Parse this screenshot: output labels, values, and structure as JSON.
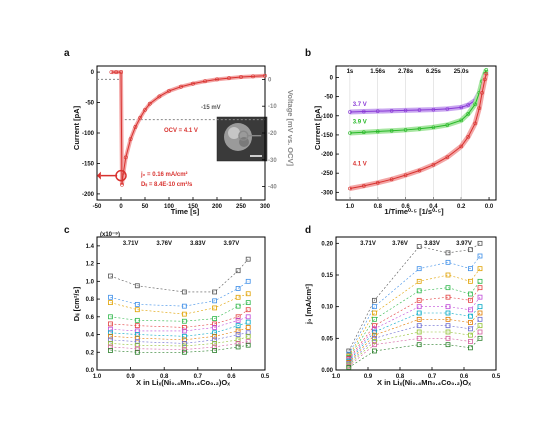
{
  "panels": {
    "a": {
      "label": "a"
    },
    "b": {
      "label": "b"
    },
    "c": {
      "label": "c"
    },
    "d": {
      "label": "d"
    }
  },
  "colors": {
    "red": "#d8322f",
    "red_light": "#f3a6a6",
    "green": "#28b928",
    "green_light": "#a7e6a1",
    "purple": "#8a3ad6",
    "purple_light": "#c9a6f0",
    "gray": "#888888"
  },
  "chart_data": [
    {
      "panel": "a",
      "type": "line",
      "xlabel": "Time [s]",
      "ylabel": "Current [pA]",
      "ylabel_right": "Voltage [mV vs. OCV]",
      "xlim": [
        -50,
        300
      ],
      "ylim": [
        -210,
        10
      ],
      "ylim_right": [
        -45,
        5
      ],
      "xticks": [
        "-50",
        "0",
        "50",
        "100",
        "150",
        "200",
        "250",
        "300"
      ],
      "yticks": [
        "0",
        "-50",
        "-100",
        "-150",
        "-200"
      ],
      "yticks_right": [
        "0",
        "-10",
        "-20",
        "-30",
        "-40"
      ],
      "series": [
        {
          "x": [
            -20,
            -10,
            0,
            2,
            5,
            10,
            20,
            30,
            40,
            50,
            60,
            80,
            100,
            125,
            150,
            175,
            200,
            225,
            250,
            275,
            300
          ],
          "values": [
            0,
            0,
            0,
            -185,
            -165,
            -140,
            -110,
            -90,
            -75,
            -62,
            -52,
            -40,
            -31,
            -24,
            -19,
            -15,
            -12,
            -10,
            -8,
            -7,
            -6
          ]
        }
      ],
      "voltage_step": {
        "x": [
          -50,
          0,
          0,
          300
        ],
        "values": [
          0,
          0,
          -15,
          -15
        ]
      },
      "annotations": {
        "step": "-15 mV",
        "ocv": "OCV = 4.1 V",
        "j0": "j₀ = 0.16 mA/cm²",
        "dli": "Dₗᵢ = 8.4E-10 cm²/s"
      }
    },
    {
      "panel": "b",
      "type": "scatter",
      "xlabel": "1/Time⁰·⁵ [1/s⁰·⁵]",
      "ylabel": "Current [pA]",
      "xlim": [
        1.1,
        -0.05
      ],
      "ylim": [
        -320,
        30
      ],
      "xticks": [
        "1.0",
        "0.8",
        "0.6",
        "0.4",
        "0.2",
        "0.0"
      ],
      "yticks": [
        "0",
        "-50",
        "-100",
        "-150",
        "-200",
        "-250",
        "-300"
      ],
      "top_labels": [
        "1s",
        "1.56s",
        "2.78s",
        "6.25s",
        "25.0s"
      ],
      "series": [
        {
          "name": "3.7 V",
          "x": [
            1.0,
            0.9,
            0.8,
            0.7,
            0.6,
            0.5,
            0.4,
            0.3,
            0.2,
            0.15,
            0.1,
            0.07,
            0.05,
            0.03,
            0.02
          ],
          "values": [
            -90,
            -89,
            -88,
            -87,
            -86,
            -85,
            -84,
            -82,
            -78,
            -72,
            -60,
            -40,
            -15,
            5,
            15
          ]
        },
        {
          "name": "3.9 V",
          "x": [
            1.0,
            0.9,
            0.8,
            0.7,
            0.6,
            0.5,
            0.4,
            0.3,
            0.2,
            0.15,
            0.1,
            0.07,
            0.05,
            0.03,
            0.02
          ],
          "values": [
            -145,
            -143,
            -141,
            -139,
            -137,
            -134,
            -130,
            -124,
            -112,
            -95,
            -70,
            -40,
            -10,
            10,
            20
          ]
        },
        {
          "name": "4.1 V",
          "x": [
            1.0,
            0.9,
            0.8,
            0.7,
            0.6,
            0.5,
            0.4,
            0.3,
            0.2,
            0.15,
            0.1,
            0.07,
            0.05,
            0.03,
            0.02
          ],
          "values": [
            -290,
            -283,
            -275,
            -266,
            -255,
            -243,
            -228,
            -208,
            -180,
            -155,
            -120,
            -80,
            -40,
            -5,
            10
          ]
        }
      ]
    },
    {
      "panel": "c",
      "type": "scatter",
      "xlabel": "X in Liₓ(Ni₀.₄Mn₀.₄Co₀.₂)Oₓ",
      "ylabel": "Dₗᵢ [cm²/s]",
      "exponent": "(x10⁻⁹)",
      "xlim": [
        1.0,
        0.5
      ],
      "ylim": [
        0,
        1.5
      ],
      "xticks": [
        "1.0",
        "0.9",
        "0.8",
        "0.7",
        "0.6",
        "0.5"
      ],
      "yticks": [
        "0.0",
        "0.2",
        "0.4",
        "0.6",
        "0.8",
        "1.0",
        "1.2",
        "1.4"
      ],
      "top_labels": [
        "3.71V",
        "3.76V",
        "3.83V",
        "3.97V"
      ],
      "x": [
        0.96,
        0.88,
        0.74,
        0.65,
        0.58,
        0.55
      ],
      "series": [
        {
          "values": [
            1.06,
            0.95,
            0.88,
            0.88,
            1.12,
            1.25
          ],
          "color": "#555555"
        },
        {
          "values": [
            0.82,
            0.74,
            0.72,
            0.78,
            0.92,
            1.0
          ],
          "color": "#3d8ee8"
        },
        {
          "values": [
            0.76,
            0.68,
            0.63,
            0.7,
            0.82,
            0.86
          ],
          "color": "#e0a100"
        },
        {
          "values": [
            0.6,
            0.56,
            0.55,
            0.58,
            0.72,
            0.76
          ],
          "color": "#2fb84b"
        },
        {
          "values": [
            0.52,
            0.5,
            0.48,
            0.52,
            0.6,
            0.68
          ],
          "color": "#e23e3e"
        },
        {
          "values": [
            0.46,
            0.44,
            0.44,
            0.48,
            0.56,
            0.6
          ],
          "color": "#c04bd8"
        },
        {
          "values": [
            0.42,
            0.4,
            0.38,
            0.42,
            0.5,
            0.54
          ],
          "color": "#00a7c4"
        },
        {
          "values": [
            0.38,
            0.36,
            0.34,
            0.38,
            0.44,
            0.48
          ],
          "color": "#e07a00"
        },
        {
          "values": [
            0.34,
            0.32,
            0.3,
            0.34,
            0.4,
            0.42
          ],
          "color": "#6a6ad0"
        },
        {
          "values": [
            0.3,
            0.28,
            0.27,
            0.3,
            0.34,
            0.38
          ],
          "color": "#8fbf2f"
        },
        {
          "values": [
            0.26,
            0.24,
            0.23,
            0.26,
            0.3,
            0.32
          ],
          "color": "#d25e9e"
        },
        {
          "values": [
            0.22,
            0.2,
            0.2,
            0.22,
            0.26,
            0.28
          ],
          "color": "#2a7f2a"
        }
      ]
    },
    {
      "panel": "d",
      "type": "scatter",
      "xlabel": "X in Liₓ(Ni₀.₄Mn₀.₄Co₀.₂)Oₓ",
      "ylabel": "j₀ [mA/cm²]",
      "xlim": [
        1.0,
        0.5
      ],
      "ylim": [
        0,
        0.21
      ],
      "xticks": [
        "1.0",
        "0.9",
        "0.8",
        "0.7",
        "0.6",
        "0.5"
      ],
      "yticks": [
        "0.00",
        "0.05",
        "0.10",
        "0.15",
        "0.20"
      ],
      "top_labels": [
        "3.71V",
        "3.76V",
        "3.83V",
        "3.97V"
      ],
      "x": [
        0.96,
        0.88,
        0.74,
        0.65,
        0.58,
        0.55
      ],
      "series": [
        {
          "values": [
            0.03,
            0.11,
            0.195,
            0.185,
            0.19,
            0.2
          ],
          "color": "#555555"
        },
        {
          "values": [
            0.025,
            0.1,
            0.16,
            0.17,
            0.16,
            0.18
          ],
          "color": "#3d8ee8"
        },
        {
          "values": [
            0.022,
            0.09,
            0.14,
            0.15,
            0.14,
            0.16
          ],
          "color": "#e0a100"
        },
        {
          "values": [
            0.02,
            0.08,
            0.125,
            0.13,
            0.12,
            0.14
          ],
          "color": "#2fb84b"
        },
        {
          "values": [
            0.018,
            0.07,
            0.11,
            0.115,
            0.11,
            0.13
          ],
          "color": "#e23e3e"
        },
        {
          "values": [
            0.016,
            0.065,
            0.1,
            0.1,
            0.095,
            0.115
          ],
          "color": "#c04bd8"
        },
        {
          "values": [
            0.014,
            0.06,
            0.09,
            0.09,
            0.085,
            0.1
          ],
          "color": "#00a7c4"
        },
        {
          "values": [
            0.012,
            0.055,
            0.08,
            0.08,
            0.075,
            0.09
          ],
          "color": "#e07a00"
        },
        {
          "values": [
            0.01,
            0.05,
            0.07,
            0.07,
            0.065,
            0.08
          ],
          "color": "#6a6ad0"
        },
        {
          "values": [
            0.008,
            0.045,
            0.06,
            0.06,
            0.055,
            0.07
          ],
          "color": "#8fbf2f"
        },
        {
          "values": [
            0.006,
            0.04,
            0.05,
            0.05,
            0.045,
            0.06
          ],
          "color": "#d25e9e"
        },
        {
          "values": [
            0.004,
            0.03,
            0.04,
            0.04,
            0.035,
            0.05
          ],
          "color": "#2a7f2a"
        }
      ]
    }
  ]
}
